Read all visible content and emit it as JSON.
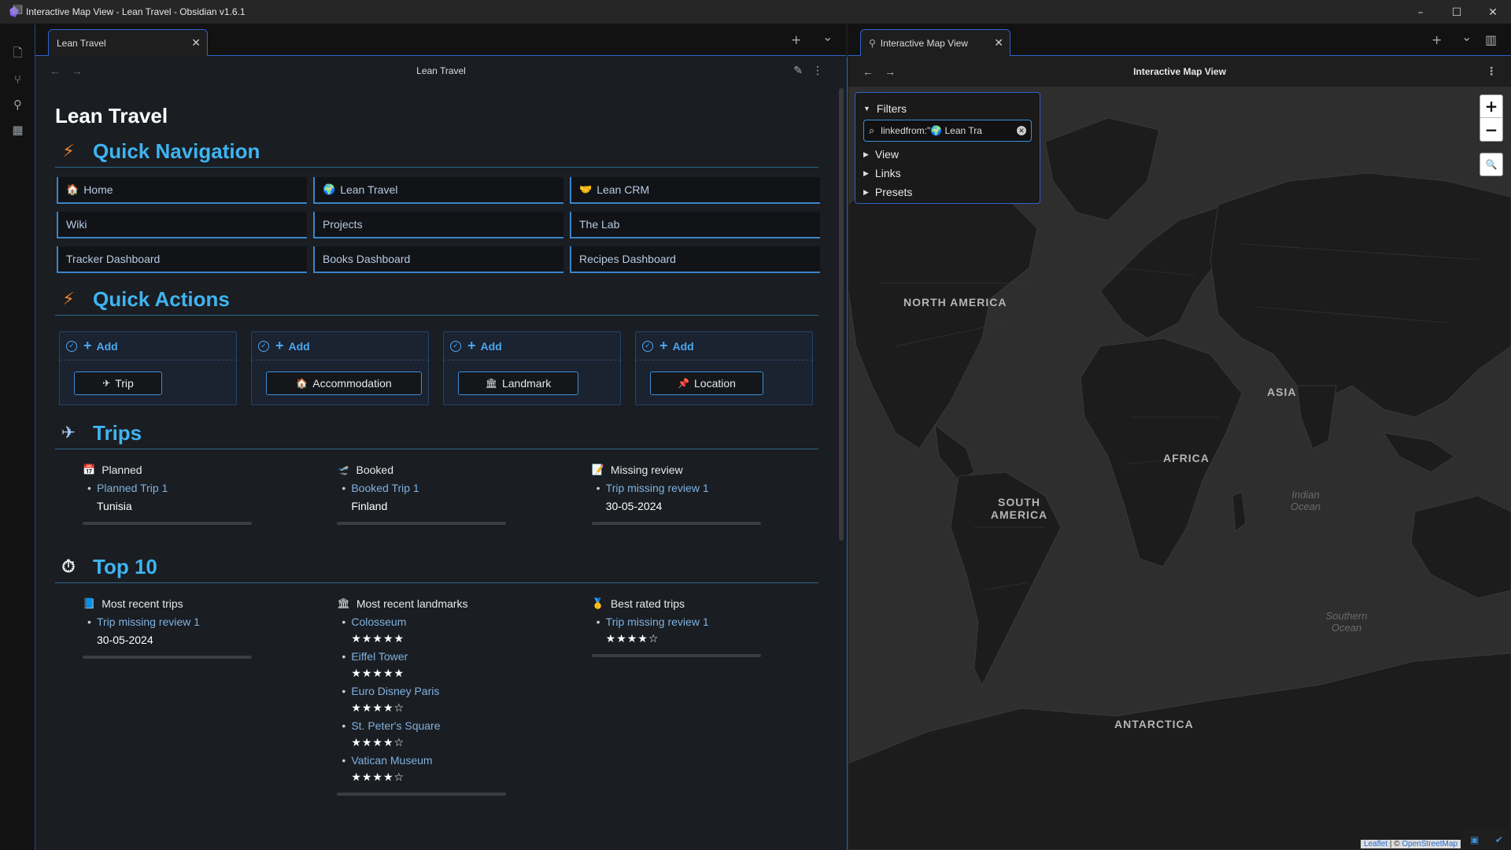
{
  "window": {
    "title": "Interactive Map View - Lean Travel - Obsidian v1.6.1",
    "controls": {
      "minimize": "–",
      "maximize": "☐",
      "close": "✕"
    }
  },
  "ribbon": {
    "icons": [
      "files-icon",
      "graph-icon",
      "map-pin-icon",
      "layout-icon"
    ]
  },
  "left_tabs": {
    "active_tab": "Lean Travel",
    "close": "✕",
    "new_tab": "+",
    "dropdown": "⌄"
  },
  "right_tabs": {
    "active_tab": "Interactive Map View",
    "close": "✕",
    "new_tab": "+",
    "dropdown": "⌄"
  },
  "note": {
    "header_title": "Lean Travel",
    "back": "←",
    "forward": "→",
    "title": "Lean Travel",
    "quick_navigation": {
      "heading": "Quick Navigation",
      "items": [
        {
          "label": "Home",
          "emoji": "🏠"
        },
        {
          "label": "Lean Travel",
          "emoji": "🌍"
        },
        {
          "label": "Lean CRM",
          "emoji": "🤝"
        },
        {
          "label": "Wiki",
          "emoji": ""
        },
        {
          "label": "Projects",
          "emoji": ""
        },
        {
          "label": "The Lab",
          "emoji": ""
        },
        {
          "label": "Tracker Dashboard",
          "emoji": ""
        },
        {
          "label": "Books Dashboard",
          "emoji": ""
        },
        {
          "label": "Recipes Dashboard",
          "emoji": ""
        }
      ]
    },
    "quick_actions": {
      "heading": "Quick Actions",
      "add_label": "Add",
      "buttons": [
        {
          "label": "Trip",
          "emoji": "✈"
        },
        {
          "label": "Accommodation",
          "emoji": "🏠"
        },
        {
          "label": "Landmark",
          "emoji": "🏛"
        },
        {
          "label": "Location",
          "emoji": "📌"
        }
      ]
    },
    "trips": {
      "heading": "Trips",
      "columns": [
        {
          "title": "Planned",
          "emoji": "📅",
          "link": "Planned Trip 1",
          "detail": "Tunisia"
        },
        {
          "title": "Booked",
          "emoji": "🛫",
          "link": "Booked Trip 1",
          "detail": "Finland"
        },
        {
          "title": "Missing review",
          "emoji": "📝",
          "link": "Trip missing review 1",
          "detail": "30-05-2024"
        }
      ]
    },
    "top10": {
      "heading": "Top 10",
      "most_recent_trips": {
        "title": "Most recent trips",
        "emoji": "📘",
        "items": [
          {
            "label": "Trip missing review 1",
            "detail": "30-05-2024"
          }
        ]
      },
      "most_recent_landmarks": {
        "title": "Most recent landmarks",
        "emoji": "🏛",
        "items": [
          {
            "label": "Colosseum",
            "stars": "★★★★★"
          },
          {
            "label": "Eiffel Tower",
            "stars": "★★★★★"
          },
          {
            "label": "Euro Disney Paris",
            "stars": "★★★★☆"
          },
          {
            "label": "St. Peter's Square",
            "stars": "★★★★☆"
          },
          {
            "label": "Vatican Museum",
            "stars": "★★★★☆"
          }
        ]
      },
      "best_rated_trips": {
        "title": "Best rated trips",
        "emoji": "🥇",
        "items": [
          {
            "label": "Trip missing review 1",
            "stars": "★★★★☆"
          }
        ]
      }
    }
  },
  "map_view": {
    "header_title": "Interactive Map View",
    "back": "←",
    "forward": "→",
    "filters": {
      "title": "Filters",
      "query": "linkedfrom:\"🌍 Lean Tra",
      "sections": [
        "View",
        "Links",
        "Presets"
      ]
    },
    "zoom_in": "+",
    "zoom_out": "−",
    "continents": [
      "NORTH AMERICA",
      "SOUTH AMERICA",
      "AFRICA",
      "ASIA",
      "ANTARCTICA"
    ],
    "oceans": [
      "Indian Ocean",
      "Southern Ocean"
    ],
    "attribution": {
      "leaflet": "Leaflet",
      "sep": " | © ",
      "osm": "OpenStreetMap"
    }
  }
}
